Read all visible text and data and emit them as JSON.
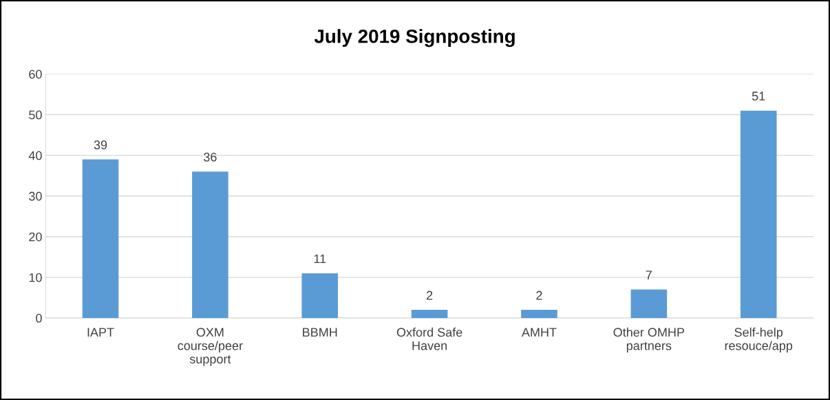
{
  "chart_data": {
    "type": "bar",
    "title": "July 2019 Signposting",
    "categories": [
      "IAPT",
      "OXM\ncourse/peer\nsupport",
      "BBMH",
      "Oxford Safe\nHaven",
      "AMHT",
      "Other OMHP\npartners",
      "Self-help\nresouce/app"
    ],
    "values": [
      39,
      36,
      11,
      2,
      2,
      7,
      51
    ],
    "color": "#5b9bd5",
    "ylim": [
      0,
      60
    ],
    "yticks": [
      0,
      10,
      20,
      30,
      40,
      50,
      60
    ],
    "grid": "y",
    "data_labels": true
  }
}
